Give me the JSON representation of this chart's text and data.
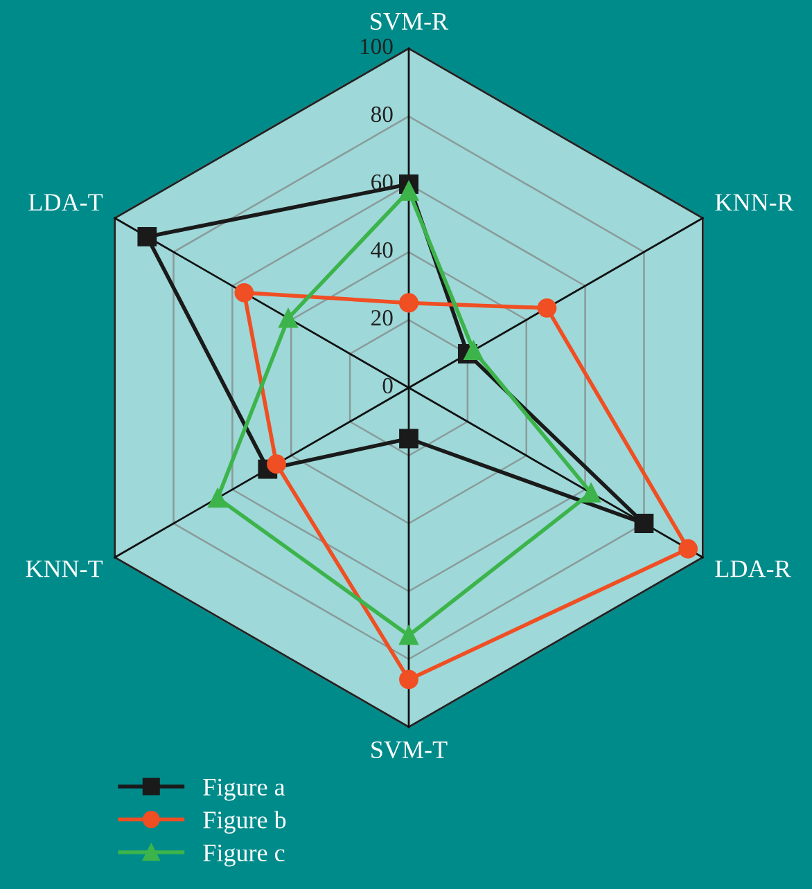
{
  "chart_data": {
    "type": "radar",
    "categories": [
      "SVM-R",
      "KNN-R",
      "LDA-R",
      "SVM-T",
      "KNN-T",
      "LDA-T"
    ],
    "series": [
      {
        "name": "Figure a",
        "color": "#1a1a1a",
        "marker": "square",
        "values": [
          60,
          20,
          80,
          15,
          48,
          89
        ]
      },
      {
        "name": "Figure b",
        "color": "#f04e23",
        "marker": "circle",
        "values": [
          25,
          47,
          95,
          86,
          45,
          56
        ]
      },
      {
        "name": "Figure c",
        "color": "#3cb44b",
        "marker": "triangle",
        "values": [
          58,
          22,
          62,
          73,
          65,
          41
        ]
      }
    ],
    "ylim": [
      0,
      100
    ],
    "yticks": [
      0,
      20,
      40,
      60,
      80,
      100
    ],
    "grid": true,
    "legend": "bottom left",
    "line_style": "solid"
  }
}
